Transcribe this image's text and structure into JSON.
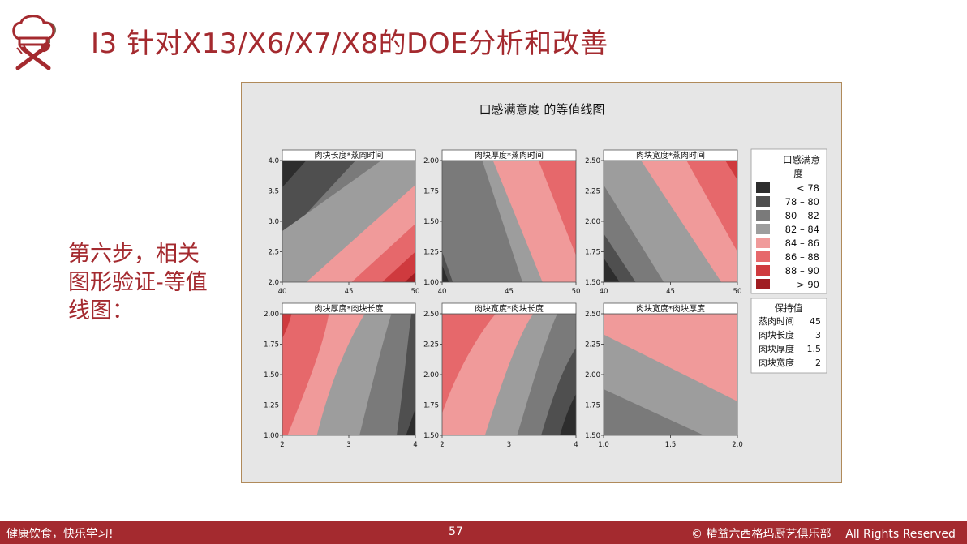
{
  "slide": {
    "title": "I3 针对X13/X6/X7/X8的DOE分析和改善",
    "step_text": "第六步，相关图形验证-等值线图：",
    "footer_left": "健康饮食，快乐学习!",
    "page_number": "57",
    "footer_right": "© 精益六西格玛厨艺俱乐部    All Rights Reserved"
  },
  "colors": {
    "brand": "#a42a2f",
    "footer_bg": "#a42a2f",
    "figure_bg": "#e6e6e6"
  },
  "chart_data": {
    "type": "contour",
    "title": "口感满意度 的等值线图",
    "legend": {
      "title": "口感满意度",
      "bands": [
        {
          "label": "<  78",
          "color": "#2d2d2d"
        },
        {
          "label": "78 – 80",
          "color": "#4f4f4f"
        },
        {
          "label": "80 – 82",
          "color": "#7a7a7a"
        },
        {
          "label": "82 – 84",
          "color": "#9d9d9d"
        },
        {
          "label": "84 – 86",
          "color": "#f09a9a"
        },
        {
          "label": "86 – 88",
          "color": "#e6686b"
        },
        {
          "label": "88 – 90",
          "color": "#cf3a3e"
        },
        {
          "label": ">  90",
          "color": "#a01d22"
        }
      ]
    },
    "hold_values": {
      "title": "保持值",
      "items": [
        {
          "name": "蒸肉时间",
          "value": "45"
        },
        {
          "name": "肉块长度",
          "value": "3"
        },
        {
          "name": "肉块厚度",
          "value": "1.5"
        },
        {
          "name": "肉块宽度",
          "value": "2"
        }
      ]
    },
    "panels": [
      {
        "title": "肉块长度*蒸肉时间",
        "x_ticks": [
          "40",
          "45",
          "50"
        ],
        "y_ticks": [
          "4.0",
          "3.5",
          "3.0",
          "2.5",
          "2.0"
        ]
      },
      {
        "title": "肉块厚度*蒸肉时间",
        "x_ticks": [
          "40",
          "45",
          "50"
        ],
        "y_ticks": [
          "2.00",
          "1.75",
          "1.50",
          "1.25",
          "1.00"
        ]
      },
      {
        "title": "肉块宽度*蒸肉时间",
        "x_ticks": [
          "40",
          "45",
          "50"
        ],
        "y_ticks": [
          "2.50",
          "2.25",
          "2.00",
          "1.75",
          "1.50"
        ]
      },
      {
        "title": "肉块厚度*肉块长度",
        "x_ticks": [
          "2",
          "3",
          "4"
        ],
        "y_ticks": [
          "2.00",
          "1.75",
          "1.50",
          "1.25",
          "1.00"
        ]
      },
      {
        "title": "肉块宽度*肉块长度",
        "x_ticks": [
          "2",
          "3",
          "4"
        ],
        "y_ticks": [
          "2.50",
          "2.25",
          "2.00",
          "1.75",
          "1.50"
        ]
      },
      {
        "title": "肉块宽度*肉块厚度",
        "x_ticks": [
          "1.0",
          "1.5",
          "2.0"
        ],
        "y_ticks": [
          "2.50",
          "2.25",
          "2.00",
          "1.75",
          "1.50"
        ]
      }
    ]
  }
}
